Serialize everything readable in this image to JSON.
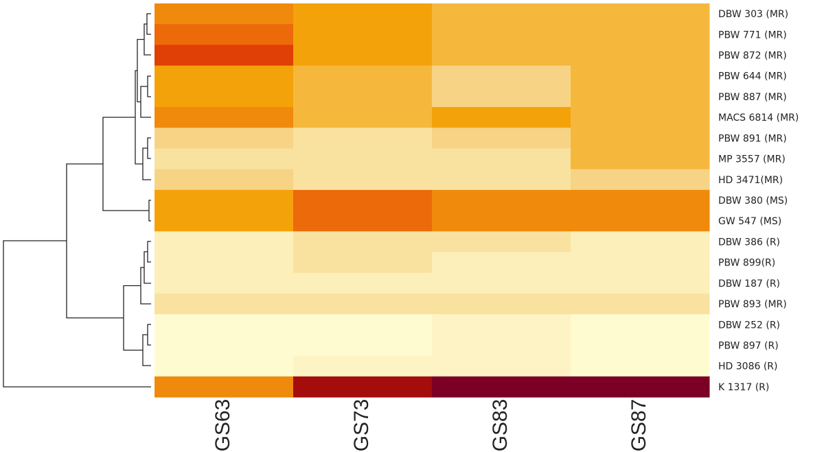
{
  "chart_data": {
    "type": "heatmap",
    "columns": [
      "GS63",
      "GS73",
      "GS83",
      "GS87"
    ],
    "rows": [
      "DBW 303 (MR)",
      "PBW 771 (MR)",
      "PBW 872 (MR)",
      "PBW 644 (MR)",
      "PBW 887 (MR)",
      "MACS 6814 (MR)",
      "PBW 891 (MR)",
      "MP 3557 (MR)",
      "HD 3471(MR)",
      "DBW 380 (MS)",
      "GW 547 (MS)",
      "DBW 386 (R)",
      "PBW 899(R)",
      "DBW 187 (R)",
      "PBW 893 (MR)",
      "DBW 252 (R)",
      "PBW 897 (R)",
      "HD 3086 (R)",
      "K 1317 (R)"
    ],
    "cell_colors": [
      [
        "#ef8a0c",
        "#f4a20a",
        "#f5b83c",
        "#f5b83c"
      ],
      [
        "#ec6a0a",
        "#f4a20a",
        "#f5b83c",
        "#f5b83c"
      ],
      [
        "#e03f05",
        "#f4a20a",
        "#f5b83c",
        "#f5b83c"
      ],
      [
        "#f4a20a",
        "#f5b83c",
        "#f7d385",
        "#f5b83c"
      ],
      [
        "#f4a20a",
        "#f5b83c",
        "#f7d385",
        "#f5b83c"
      ],
      [
        "#ef8a0c",
        "#f5b83c",
        "#f4a20a",
        "#f5b83c"
      ],
      [
        "#f7d385",
        "#f9e2a0",
        "#f7d385",
        "#f5b83c"
      ],
      [
        "#f9e2a0",
        "#f9e2a0",
        "#f9e2a0",
        "#f5b83c"
      ],
      [
        "#f7d385",
        "#f9e2a0",
        "#f9e2a0",
        "#f7d385"
      ],
      [
        "#f4a20a",
        "#ec6a0a",
        "#ef8a0c",
        "#ef8a0c"
      ],
      [
        "#f4a20a",
        "#ec6a0a",
        "#ef8a0c",
        "#ef8a0c"
      ],
      [
        "#fcefb9",
        "#f9e2a0",
        "#f9e2a0",
        "#fcefb9"
      ],
      [
        "#fcefb9",
        "#f9e2a0",
        "#fcefb9",
        "#fcefb9"
      ],
      [
        "#fcefb9",
        "#fcefb9",
        "#fcefb9",
        "#fcefb9"
      ],
      [
        "#f9e2a0",
        "#f9e2a0",
        "#f9e2a0",
        "#f9e2a0"
      ],
      [
        "#fffbd0",
        "#fffbd0",
        "#fdf3c4",
        "#fffbd0"
      ],
      [
        "#fffbd0",
        "#fffbd0",
        "#fdf3c4",
        "#fffbd0"
      ],
      [
        "#fffbd0",
        "#fdf3c4",
        "#fdf3c4",
        "#fffbd0"
      ],
      [
        "#ef8a0c",
        "#a50c0c",
        "#7c0026",
        "#7c0026"
      ]
    ]
  }
}
